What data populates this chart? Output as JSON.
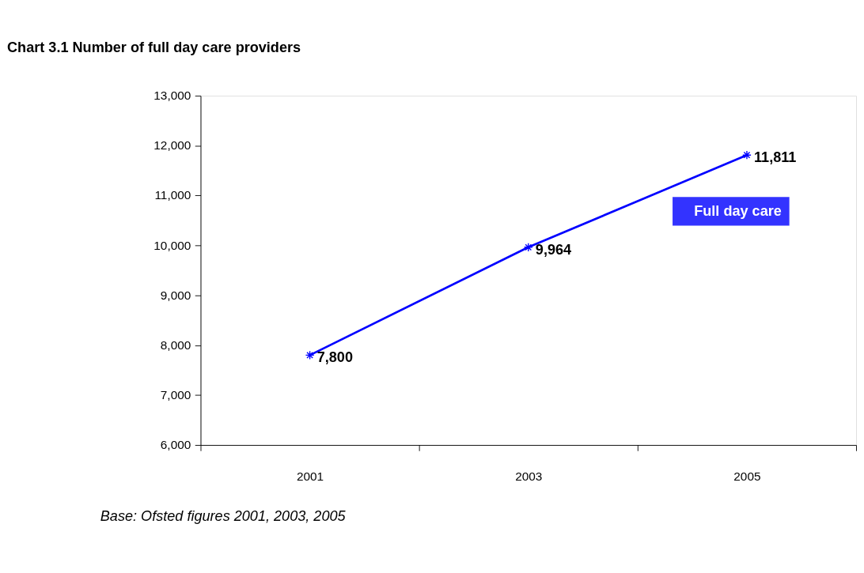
{
  "chart_data": {
    "type": "line",
    "title": "Chart 3.1  Number of full day care providers",
    "categories": [
      "2001",
      "2003",
      "2005"
    ],
    "series": [
      {
        "name": "Full day care",
        "color": "#0000ff",
        "values": [
          7800,
          9964,
          11811
        ],
        "value_labels": [
          "7,800",
          "9,964",
          "11,811"
        ]
      }
    ],
    "ylim": [
      6000,
      13000
    ],
    "yticks": [
      {
        "value": 6000,
        "label": "6,000"
      },
      {
        "value": 7000,
        "label": "7,000"
      },
      {
        "value": 8000,
        "label": "8,000"
      },
      {
        "value": 9000,
        "label": "9,000"
      },
      {
        "value": 10000,
        "label": "10,000"
      },
      {
        "value": 11000,
        "label": "11,000"
      },
      {
        "value": 12000,
        "label": "12,000"
      },
      {
        "value": 13000,
        "label": "13,000"
      }
    ],
    "grid": false,
    "legend": "right",
    "marker": "cross",
    "line_style": "solid",
    "annotations": [
      "Base: Ofsted figures 2001, 2003, 2005"
    ]
  }
}
